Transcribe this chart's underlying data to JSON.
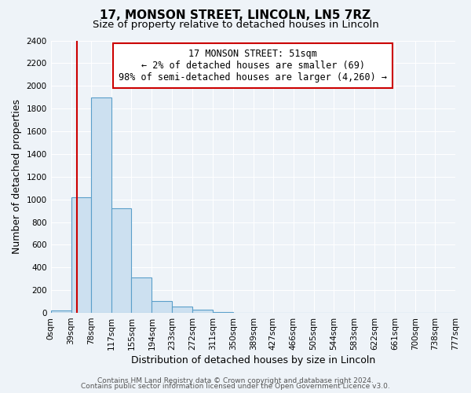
{
  "title": "17, MONSON STREET, LINCOLN, LN5 7RZ",
  "subtitle": "Size of property relative to detached houses in Lincoln",
  "xlabel": "Distribution of detached houses by size in Lincoln",
  "ylabel": "Number of detached properties",
  "bin_edges": [
    0,
    39,
    78,
    117,
    155,
    194,
    233,
    272,
    311,
    350,
    389,
    427,
    466,
    505,
    544,
    583,
    622,
    661,
    700,
    738,
    777
  ],
  "bin_labels": [
    "0sqm",
    "39sqm",
    "78sqm",
    "117sqm",
    "155sqm",
    "194sqm",
    "233sqm",
    "272sqm",
    "311sqm",
    "350sqm",
    "389sqm",
    "427sqm",
    "466sqm",
    "505sqm",
    "544sqm",
    "583sqm",
    "622sqm",
    "661sqm",
    "700sqm",
    "738sqm",
    "777sqm"
  ],
  "bar_heights": [
    20,
    1020,
    1900,
    920,
    315,
    105,
    55,
    30,
    10,
    0,
    0,
    0,
    0,
    0,
    0,
    0,
    0,
    0,
    0,
    0
  ],
  "bar_color": "#cce0f0",
  "bar_edgecolor": "#5b9fca",
  "property_line_x": 51,
  "property_line_color": "#cc0000",
  "annotation_text": "17 MONSON STREET: 51sqm\n← 2% of detached houses are smaller (69)\n98% of semi-detached houses are larger (4,260) →",
  "annotation_box_facecolor": "#ffffff",
  "annotation_box_edgecolor": "#cc0000",
  "ylim": [
    0,
    2400
  ],
  "yticks": [
    0,
    200,
    400,
    600,
    800,
    1000,
    1200,
    1400,
    1600,
    1800,
    2000,
    2200,
    2400
  ],
  "footer_line1": "Contains HM Land Registry data © Crown copyright and database right 2024.",
  "footer_line2": "Contains public sector information licensed under the Open Government Licence v3.0.",
  "background_color": "#eef3f8",
  "grid_color": "#ffffff",
  "title_fontsize": 11,
  "subtitle_fontsize": 9.5,
  "label_fontsize": 9,
  "tick_fontsize": 7.5,
  "annotation_fontsize": 8.5,
  "footer_fontsize": 6.5
}
